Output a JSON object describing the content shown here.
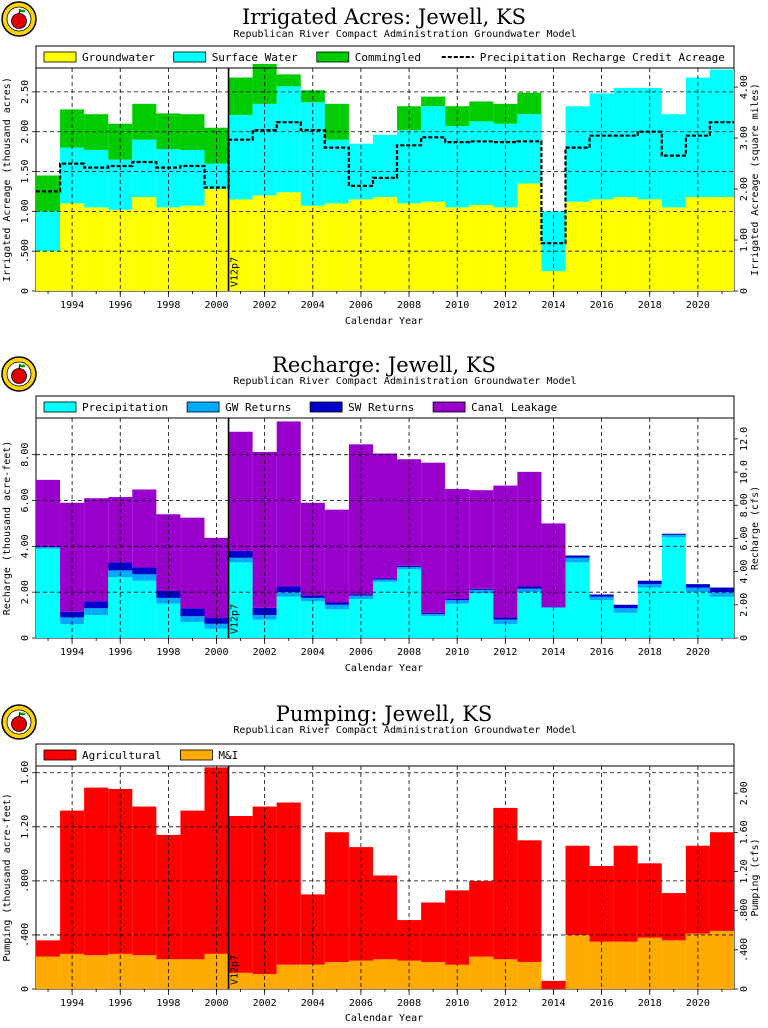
{
  "chart_data": [
    {
      "id": "irr",
      "type": "bar",
      "stacked": true,
      "title": "Irrigated Acres:  Jewell, KS",
      "subtitle": "Republican River Compact Administration Groundwater Model",
      "xlabel": "Calendar Year",
      "ylabel": "Irrigated Acreage (thousand acres)",
      "y2label": "Irrigated Acreage (square miles)",
      "x": [
        1993,
        1994,
        1995,
        1996,
        1997,
        1998,
        1999,
        2000,
        2001,
        2002,
        2003,
        2004,
        2005,
        2006,
        2007,
        2008,
        2009,
        2010,
        2011,
        2012,
        2013,
        2014,
        2015,
        2016,
        2017,
        2018,
        2019,
        2020,
        2021
      ],
      "xticks": [
        "1994",
        "1996",
        "1998",
        "2000",
        "2002",
        "2004",
        "2006",
        "2008",
        "2010",
        "2012",
        "2014",
        "2016",
        "2018",
        "2020"
      ],
      "ylim": [
        0,
        2.8
      ],
      "yticks": [
        "0",
        ".500",
        "1.00",
        "1.50",
        "2.00",
        "2.50"
      ],
      "y2lim": [
        0,
        4.375
      ],
      "y2ticks": [
        "0",
        "1.00",
        "2.00",
        "3.00",
        "4.00"
      ],
      "series": [
        {
          "name": "Groundwater",
          "color": "#ffff00",
          "values": [
            0.5,
            1.1,
            1.05,
            1.02,
            1.18,
            1.05,
            1.07,
            1.28,
            1.15,
            1.2,
            1.24,
            1.07,
            1.1,
            1.15,
            1.18,
            1.1,
            1.12,
            1.05,
            1.08,
            1.05,
            1.35,
            0.25,
            1.12,
            1.15,
            1.18,
            1.15,
            1.05,
            1.18,
            1.18
          ]
        },
        {
          "name": "Surface Water",
          "color": "#00ffff",
          "values": [
            0.5,
            0.7,
            0.72,
            0.63,
            0.72,
            0.73,
            0.7,
            0.32,
            1.06,
            1.15,
            1.33,
            1.3,
            0.8,
            0.7,
            0.78,
            0.92,
            1.2,
            1.02,
            1.05,
            1.05,
            0.87,
            0.75,
            1.2,
            1.33,
            1.37,
            1.4,
            1.17,
            1.5,
            1.6
          ]
        },
        {
          "name": "Commingled",
          "color": "#00cc00",
          "values": [
            0.45,
            0.48,
            0.45,
            0.45,
            0.45,
            0.45,
            0.45,
            0.45,
            0.47,
            0.5,
            0.15,
            0.15,
            0.45,
            0,
            0,
            0.3,
            0.12,
            0.25,
            0.25,
            0.25,
            0.27,
            0,
            0,
            0,
            0,
            0,
            0,
            0,
            0
          ]
        }
      ],
      "line": {
        "name": "Precipitation Recharge Credit Acreage",
        "values": [
          1.25,
          1.6,
          1.55,
          1.57,
          1.62,
          1.55,
          1.57,
          1.3,
          1.9,
          2.02,
          2.12,
          2.02,
          1.8,
          1.32,
          1.42,
          1.83,
          1.93,
          1.87,
          1.88,
          1.87,
          1.88,
          0.6,
          1.8,
          1.95,
          1.95,
          2.0,
          1.7,
          1.95,
          2.12
        ]
      }
    },
    {
      "id": "rech",
      "type": "bar",
      "stacked": true,
      "title": "Recharge:  Jewell, KS",
      "subtitle": "Republican River Compact Administration Groundwater Model",
      "xlabel": "Calendar Year",
      "ylabel": "Recharge (thousand acre-feet)",
      "y2label": "Recharge (cfs)",
      "x": [
        1993,
        1994,
        1995,
        1996,
        1997,
        1998,
        1999,
        2000,
        2001,
        2002,
        2003,
        2004,
        2005,
        2006,
        2007,
        2008,
        2009,
        2010,
        2011,
        2012,
        2013,
        2014,
        2015,
        2016,
        2017,
        2018,
        2019,
        2020,
        2021
      ],
      "xticks": [
        "1994",
        "1996",
        "1998",
        "2000",
        "2002",
        "2004",
        "2006",
        "2008",
        "2010",
        "2012",
        "2014",
        "2016",
        "2018",
        "2020"
      ],
      "ylim": [
        0,
        9.6
      ],
      "yticks": [
        "0",
        "2.00",
        "4.00",
        "6.00",
        "8.00"
      ],
      "y2lim": [
        0,
        13.26
      ],
      "y2ticks": [
        "0",
        "2.00",
        "4.00",
        "6.00",
        "8.00",
        "10.0",
        "12.0"
      ],
      "series": [
        {
          "name": "Precipitation",
          "color": "#00ffff",
          "values": [
            3.9,
            0.6,
            1.0,
            2.65,
            2.5,
            1.5,
            0.7,
            0.4,
            3.3,
            0.8,
            1.8,
            1.6,
            1.25,
            1.7,
            2.45,
            3.0,
            0.95,
            1.5,
            1.95,
            0.6,
            2.0,
            1.3,
            3.3,
            1.65,
            1.1,
            2.2,
            4.4,
            2.0,
            1.8
          ]
        },
        {
          "name": "GW Returns",
          "color": "#00aaff",
          "values": [
            0.06,
            0.3,
            0.3,
            0.3,
            0.28,
            0.25,
            0.25,
            0.22,
            0.2,
            0.2,
            0.2,
            0.15,
            0.2,
            0.15,
            0.1,
            0.1,
            0.1,
            0.15,
            0.15,
            0.2,
            0.15,
            0.05,
            0.2,
            0.15,
            0.2,
            0.15,
            0.1,
            0.2,
            0.2
          ]
        },
        {
          "name": "SW Returns",
          "color": "#0000cc",
          "values": [
            0.04,
            0.25,
            0.3,
            0.35,
            0.3,
            0.3,
            0.35,
            0.25,
            0.3,
            0.32,
            0.25,
            0.1,
            0.1,
            0.05,
            0.05,
            0.05,
            0.05,
            0.05,
            0.05,
            0.1,
            0.1,
            0,
            0.1,
            0.1,
            0.15,
            0.15,
            0.05,
            0.15,
            0.2
          ]
        },
        {
          "name": "Canal Leakage",
          "color": "#9900cc",
          "values": [
            2.9,
            4.75,
            4.5,
            2.85,
            3.4,
            3.35,
            3.95,
            3.5,
            5.2,
            6.8,
            7.2,
            4.05,
            4.05,
            6.55,
            5.45,
            4.65,
            6.55,
            4.8,
            4.3,
            5.75,
            5.0,
            3.65,
            0,
            0,
            0,
            0,
            0,
            0,
            0
          ]
        }
      ]
    },
    {
      "id": "pump",
      "type": "bar",
      "stacked": true,
      "title": "Pumping:  Jewell, KS",
      "subtitle": "Republican River Compact Administration Groundwater Model",
      "xlabel": "Calendar Year",
      "ylabel": "Pumping (thousand acre-feet)",
      "y2label": "Pumping (cfs)",
      "x": [
        1993,
        1994,
        1995,
        1996,
        1997,
        1998,
        1999,
        2000,
        2001,
        2002,
        2003,
        2004,
        2005,
        2006,
        2007,
        2008,
        2009,
        2010,
        2011,
        2012,
        2013,
        2014,
        2015,
        2016,
        2017,
        2018,
        2019,
        2020,
        2021
      ],
      "xticks": [
        "1994",
        "1996",
        "1998",
        "2000",
        "2002",
        "2004",
        "2006",
        "2008",
        "2010",
        "2012",
        "2014",
        "2016",
        "2018",
        "2020"
      ],
      "ylim": [
        0,
        1.65
      ],
      "yticks": [
        "0",
        ".400",
        ".800",
        "1.20",
        "1.60"
      ],
      "y2lim": [
        0,
        2.278
      ],
      "y2ticks": [
        "0",
        ".400",
        ".800",
        "1.20",
        "1.60",
        "2.00"
      ],
      "series": [
        {
          "name": "M&I",
          "color": "#ffaa00",
          "values": [
            0.24,
            0.26,
            0.25,
            0.26,
            0.25,
            0.22,
            0.22,
            0.26,
            0.12,
            0.11,
            0.18,
            0.18,
            0.2,
            0.21,
            0.22,
            0.21,
            0.2,
            0.18,
            0.24,
            0.22,
            0.2,
            0,
            0.4,
            0.35,
            0.35,
            0.38,
            0.36,
            0.41,
            0.43
          ]
        },
        {
          "name": "Agricultural",
          "color": "#ff0000",
          "values": [
            0.12,
            1.06,
            1.24,
            1.22,
            1.1,
            0.92,
            1.1,
            1.38,
            1.16,
            1.24,
            1.2,
            0.52,
            0.96,
            0.84,
            0.62,
            0.3,
            0.44,
            0.55,
            0.56,
            1.12,
            0.9,
            0.06,
            0.66,
            0.56,
            0.71,
            0.55,
            0.35,
            0.65,
            0.73
          ]
        }
      ],
      "legend_order": [
        "Agricultural",
        "M&I"
      ]
    }
  ],
  "marker": {
    "year_boundary": 2000.5,
    "label": "V12p7"
  }
}
